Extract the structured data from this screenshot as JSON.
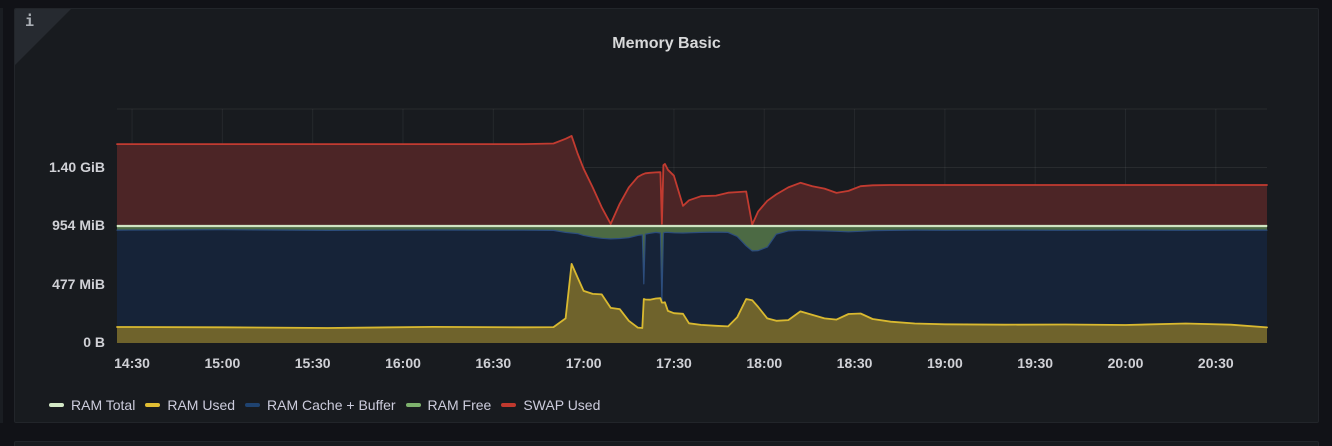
{
  "panel": {
    "title": "Memory Basic",
    "info_icon": "i"
  },
  "legend": {
    "items": [
      {
        "label": "RAM Total",
        "color": "#d3e8c6"
      },
      {
        "label": "RAM Used",
        "color": "#e0bd33"
      },
      {
        "label": "RAM Cache + Buffer",
        "color": "#1f4370"
      },
      {
        "label": "RAM Free",
        "color": "#7eb26d"
      },
      {
        "label": "SWAP Used",
        "color": "#c0392e"
      }
    ]
  },
  "chart_data": {
    "type": "area",
    "stacked": true,
    "title": "Memory Basic",
    "unit": "bytes (IEC display)",
    "grid": true,
    "legend_position": "bottom",
    "x_axis": "time",
    "x_ticks": [
      {
        "label": "14:30",
        "t": 30
      },
      {
        "label": "15:00",
        "t": 60
      },
      {
        "label": "15:30",
        "t": 90
      },
      {
        "label": "16:00",
        "t": 120
      },
      {
        "label": "16:30",
        "t": 150
      },
      {
        "label": "17:00",
        "t": 180
      },
      {
        "label": "17:30",
        "t": 210
      },
      {
        "label": "18:00",
        "t": 240
      },
      {
        "label": "18:30",
        "t": 270
      },
      {
        "label": "19:00",
        "t": 300
      },
      {
        "label": "19:30",
        "t": 330
      },
      {
        "label": "20:00",
        "t": 360
      },
      {
        "label": "20:30",
        "t": 390
      }
    ],
    "y_ticks": [
      {
        "label": "0 B",
        "mb": 0
      },
      {
        "label": "477 MiB",
        "mb": 500
      },
      {
        "label": "954 MiB",
        "mb": 1000
      },
      {
        "label": "1.40 GiB",
        "mb": 1500
      },
      {
        "label": "",
        "mb": 2000
      }
    ],
    "t_minutes_after_1400": [
      25,
      60,
      95,
      130,
      160,
      170,
      174,
      176,
      178,
      180,
      183,
      186,
      189,
      192,
      195,
      198,
      199.5,
      200,
      200.5,
      202,
      204,
      205.5,
      206,
      206.5,
      207,
      208,
      210,
      213,
      215,
      219,
      224,
      228,
      231,
      234,
      236,
      238,
      241,
      244,
      248,
      252,
      256,
      260,
      264,
      268,
      272,
      276,
      282,
      290,
      300,
      320,
      340,
      360,
      380,
      395,
      407
    ],
    "series": [
      {
        "name": "RAM Used",
        "color": "#d9b930",
        "fill": "#6f632c",
        "values_mb": [
          137,
          134,
          128,
          138,
          134,
          136,
          210,
          676,
          560,
          445,
          420,
          415,
          300,
          290,
          190,
          132,
          128,
          376,
          372,
          370,
          380,
          383,
          345,
          345,
          348,
          274,
          255,
          250,
          168,
          155,
          147,
          142,
          220,
          376,
          366,
          308,
          210,
          190,
          196,
          270,
          240,
          210,
          200,
          248,
          252,
          205,
          182,
          167,
          160,
          156,
          158,
          154,
          167,
          156,
          133
        ]
      },
      {
        "name": "RAM Cache + Buffer",
        "color": "#2c4d7d",
        "fill": "#162338",
        "values_mb": [
          828,
          834,
          834,
          828,
          830,
          826,
          735,
          264,
          375,
          475,
          485,
          480,
          590,
          603,
          710,
          788,
          797,
          129,
          558,
          568,
          565,
          557,
          14,
          595,
          597,
          671,
          687,
          690,
          774,
          790,
          801,
          803,
          690,
          454,
          421,
          482,
          610,
          740,
          762,
          692,
          720,
          748,
          755,
          702,
          703,
          755,
          780,
          798,
          803,
          809,
          805,
          811,
          796,
          809,
          832
        ]
      },
      {
        "name": "RAM Free",
        "color": "#76a566",
        "fill": "#4c6a44",
        "values_mb": [
          35,
          32,
          38,
          34,
          36,
          38,
          55,
          60,
          65,
          80,
          95,
          105,
          110,
          107,
          100,
          80,
          75,
          495,
          70,
          62,
          55,
          60,
          641,
          60,
          55,
          55,
          58,
          60,
          58,
          55,
          52,
          55,
          90,
          170,
          213,
          210,
          180,
          70,
          42,
          38,
          40,
          42,
          45,
          50,
          45,
          40,
          38,
          35,
          37,
          35,
          37,
          35,
          37,
          35,
          35
        ]
      },
      {
        "name": "SWAP Used",
        "color": "#c23b30",
        "fill": "#4c2526",
        "values_mb": [
          700,
          700,
          700,
          700,
          700,
          705,
          745,
          770,
          620,
          490,
          330,
          160,
          18,
          190,
          330,
          420,
          440,
          445,
          450,
          455,
          458,
          460,
          18,
          520,
          531,
          480,
          430,
          172,
          220,
          255,
          260,
          285,
          290,
          295,
          12,
          125,
          215,
          270,
          330,
          369,
          340,
          320,
          283,
          300,
          340,
          348,
          350,
          350,
          350,
          350,
          350,
          350,
          350,
          350,
          350
        ]
      }
    ],
    "overlay_line": {
      "name": "RAM Total",
      "color": "#d0e4c3",
      "value_mb": 1000
    }
  }
}
